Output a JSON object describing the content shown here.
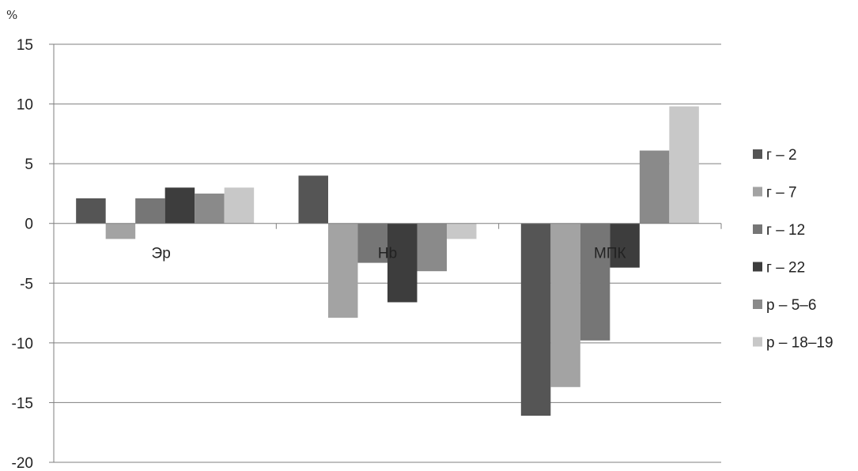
{
  "chart_data": {
    "type": "bar",
    "ylabel": "%",
    "ylim": [
      -20,
      15
    ],
    "yticks": [
      15,
      10,
      5,
      0,
      -5,
      -10,
      -15,
      -20
    ],
    "grid": true,
    "legend_position": "right",
    "categories": [
      "Эр",
      "Hb",
      "МПК"
    ],
    "series": [
      {
        "name": "г – 2",
        "color": "#555555",
        "values": [
          2.1,
          4.0,
          -16.1
        ]
      },
      {
        "name": "г – 7",
        "color": "#a3a3a3",
        "values": [
          -1.3,
          -7.9,
          -13.7
        ]
      },
      {
        "name": "г – 12",
        "color": "#767676",
        "values": [
          2.1,
          -3.3,
          -9.8
        ]
      },
      {
        "name": "г – 22",
        "color": "#3d3d3d",
        "values": [
          3.0,
          -6.6,
          -3.7
        ]
      },
      {
        "name": "р – 5–6",
        "color": "#8a8a8a",
        "values": [
          2.5,
          -4.0,
          6.1
        ]
      },
      {
        "name": "р – 18–19",
        "color": "#c8c8c8",
        "values": [
          3.0,
          -1.3,
          9.8
        ]
      }
    ]
  }
}
